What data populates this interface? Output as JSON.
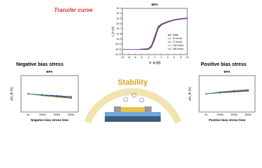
{
  "chart_data": [
    {
      "type": "line",
      "title": "BPA",
      "heading": "Transfer curve",
      "xlabel": "V_G (V)",
      "ylabel": "I_D (A)",
      "yscale": "log",
      "x": [
        -10,
        -6,
        -2,
        -1,
        0,
        1,
        2,
        4,
        6,
        8,
        10
      ],
      "series": [
        {
          "name": "Initial",
          "color": "#000000",
          "values": [
            1e-11,
            1e-11,
            1e-11,
            3e-11,
            1e-09,
            1e-07,
            6e-07,
            2e-06,
            5e-06,
            8e-06,
            1e-05
          ]
        },
        {
          "name": "24 hours",
          "color": "#e0322d",
          "values": [
            1e-11,
            1e-11,
            1.2e-11,
            4e-11,
            2e-09,
            1.5e-07,
            7e-07,
            2.2e-06,
            5.5e-06,
            8.5e-06,
            1.1e-05
          ]
        },
        {
          "name": "72 hours",
          "color": "#3a55c8",
          "values": [
            1e-11,
            1e-11,
            1.3e-11,
            5e-11,
            3e-09,
            2e-07,
            8e-07,
            2.5e-06,
            6e-06,
            9e-06,
            1.2e-05
          ]
        },
        {
          "name": "120 hours",
          "color": "#2aa84a",
          "values": [
            1e-11,
            1e-11,
            1.4e-11,
            6e-11,
            4e-09,
            2.5e-07,
            9e-07,
            2.8e-06,
            6.5e-06,
            1e-05,
            1.3e-05
          ]
        },
        {
          "name": "168 hours",
          "color": "#9b30c8",
          "values": [
            1e-11,
            1e-11,
            1.5e-11,
            7e-11,
            5e-09,
            3e-07,
            1e-06,
            3e-06,
            7e-06,
            1.1e-05,
            1.4e-05
          ]
        }
      ],
      "xlim": [
        -10,
        10
      ],
      "xticks": [
        -10,
        -8,
        -6,
        -4,
        -2,
        0,
        2,
        4,
        6,
        8,
        10
      ],
      "ylim": [
        1e-12,
        0.001
      ],
      "yticks": [
        {
          "value": 0.001,
          "label": "1E-3"
        },
        {
          "value": 0.0001,
          "label": "1E-4"
        },
        {
          "value": 1e-05,
          "label": "1E-5"
        },
        {
          "value": 1e-06,
          "label": "1E-6"
        },
        {
          "value": 1e-07,
          "label": "1E-7"
        },
        {
          "value": 1e-08,
          "label": "1E-8"
        },
        {
          "value": 1e-09,
          "label": "1E-9"
        },
        {
          "value": 1e-10,
          "label": "1E-10"
        },
        {
          "value": 1e-11,
          "label": "1E-11"
        },
        {
          "value": 1e-12,
          "label": "1E-12"
        }
      ],
      "legend": "lower-right"
    },
    {
      "type": "line",
      "title": "BPA",
      "heading": "Negative bias stress",
      "xlabel": "Negative bias stress time",
      "ylabel": "ΔV_th (V)",
      "categories": [
        "0s",
        "1000s",
        "2000s",
        "3000s"
      ],
      "series": [
        {
          "color": "#000000",
          "values": [
            0,
            -0.3,
            -0.5,
            -0.8
          ]
        },
        {
          "color": "#e0322d",
          "values": [
            0,
            -0.4,
            -0.7,
            -1.0
          ]
        },
        {
          "color": "#3a55c8",
          "values": [
            0,
            -0.2,
            -0.4,
            -0.6
          ]
        },
        {
          "color": "#2aa84a",
          "values": [
            0,
            -0.35,
            -0.6,
            -0.9
          ]
        }
      ],
      "ylim": [
        -4,
        4
      ]
    },
    {
      "type": "line",
      "title": "BPA",
      "heading": "Positive bias stress",
      "xlabel": "Positive bias stress time",
      "ylabel": "ΔV_th (V)",
      "categories": [
        "0s",
        "1000s",
        "2000s",
        "3000s"
      ],
      "series": [
        {
          "color": "#000000",
          "values": [
            0,
            0.3,
            0.5,
            0.7
          ]
        },
        {
          "color": "#e0322d",
          "values": [
            0,
            0.4,
            0.7,
            0.9
          ]
        },
        {
          "color": "#3a55c8",
          "values": [
            0,
            0.2,
            0.4,
            0.6
          ]
        },
        {
          "color": "#2aa84a",
          "values": [
            0,
            0.35,
            0.6,
            0.8
          ]
        }
      ],
      "ylim": [
        -4,
        4
      ]
    }
  ],
  "center": {
    "title": "Stability"
  }
}
